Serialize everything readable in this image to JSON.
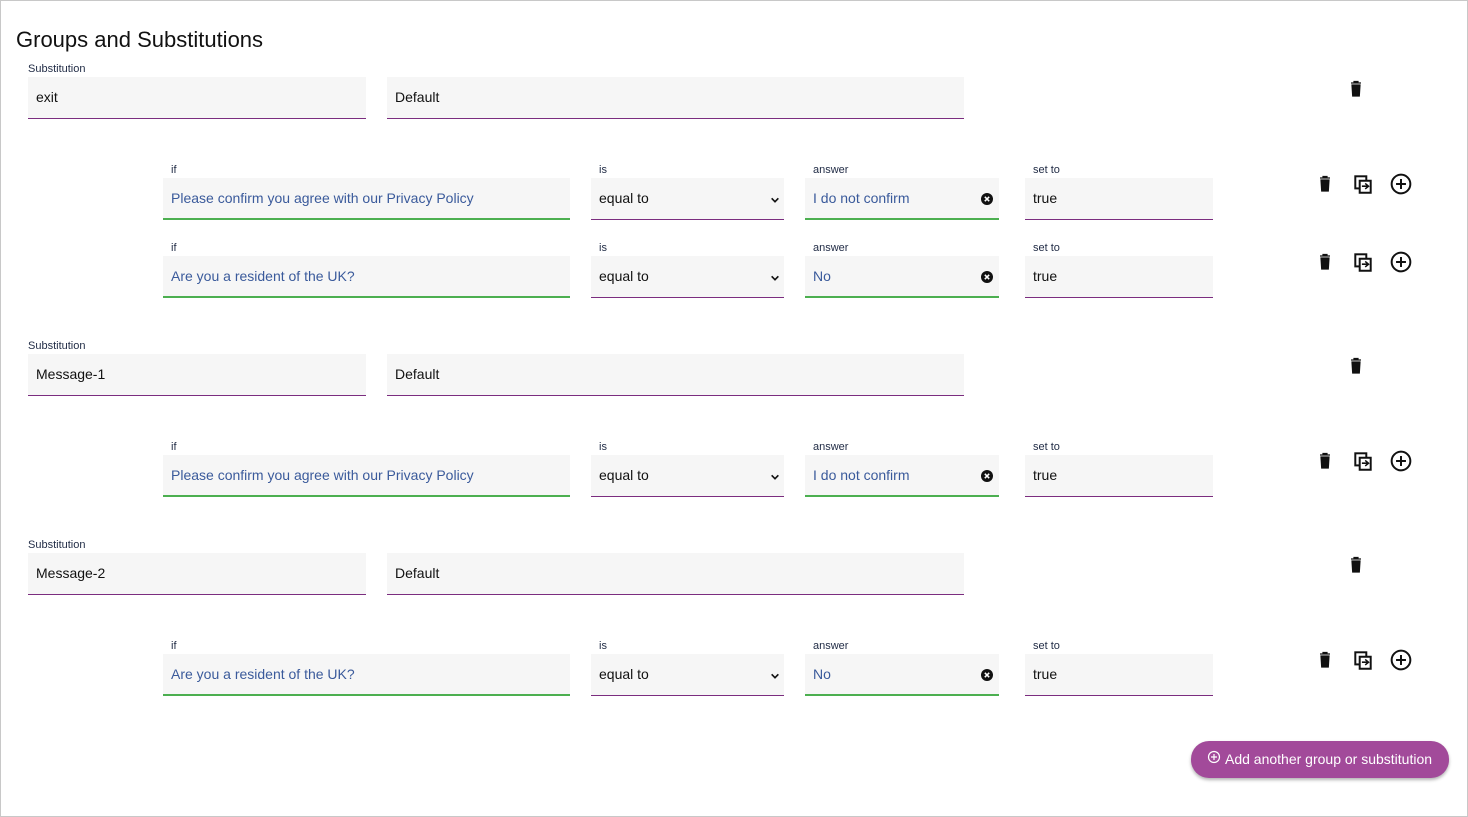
{
  "title": "Groups and Substitutions",
  "substitutions": [
    {
      "label": "Substitution",
      "name": "exit",
      "default": "Default",
      "conditions": [
        {
          "if_label": "if",
          "if": "Please confirm you agree with our Privacy Policy",
          "is_label": "is",
          "is": "equal to",
          "answer_label": "answer",
          "answer": "I do not confirm",
          "set_label": "set to",
          "set": "true"
        },
        {
          "if_label": "if",
          "if": "Are you a resident of the UK?",
          "is_label": "is",
          "is": "equal to",
          "answer_label": "answer",
          "answer": "No",
          "set_label": "set to",
          "set": "true"
        }
      ]
    },
    {
      "label": "Substitution",
      "name": "Message-1",
      "default": "Default",
      "conditions": [
        {
          "if_label": "if",
          "if": "Please confirm you agree with our Privacy Policy",
          "is_label": "is",
          "is": "equal to",
          "answer_label": "answer",
          "answer": "I do not confirm",
          "set_label": "set to",
          "set": "true"
        }
      ]
    },
    {
      "label": "Substitution",
      "name": "Message-2",
      "default": "Default",
      "conditions": [
        {
          "if_label": "if",
          "if": "Are you a resident of the UK?",
          "is_label": "is",
          "is": "equal to",
          "answer_label": "answer",
          "answer": "No",
          "set_label": "set to",
          "set": "true"
        }
      ]
    }
  ],
  "button": "Add another group or substitution"
}
